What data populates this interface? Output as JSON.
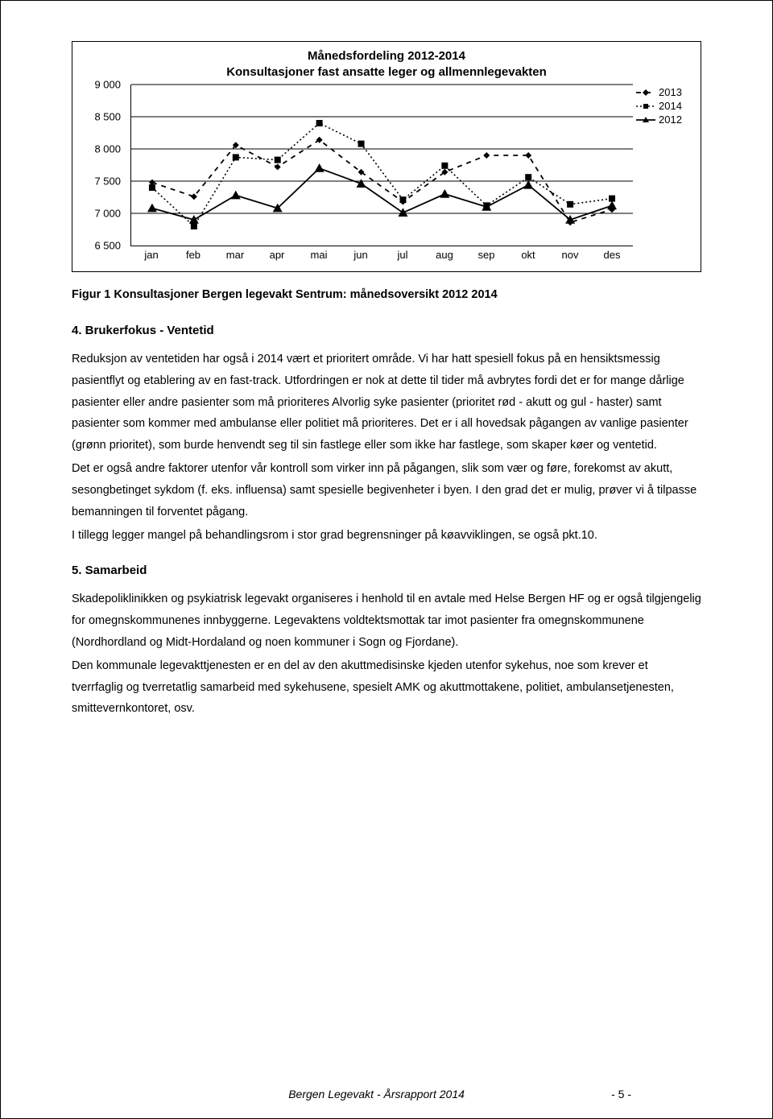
{
  "chart": {
    "type": "line",
    "title_line1": "Månedsfordeling 2012-2014",
    "title_line2": "Konsultasjoner fast ansatte leger og allmennlegevakten",
    "title_fontsize": 15,
    "x_categories": [
      "jan",
      "feb",
      "mar",
      "apr",
      "mai",
      "jun",
      "jul",
      "aug",
      "sep",
      "okt",
      "nov",
      "des"
    ],
    "y_ticks": [
      6500,
      7000,
      7500,
      8000,
      8500,
      9000
    ],
    "y_tick_labels": [
      "6 500",
      "7 000",
      "7 500",
      "8 000",
      "8 500",
      "9 000"
    ],
    "ylim": [
      6500,
      9000
    ],
    "series": [
      {
        "name": "2013",
        "legend_label": "2013",
        "color": "#000000",
        "stroke_width": 1.8,
        "dash": "6,6",
        "marker": "diamond",
        "marker_size": 8,
        "marker_fill": "#000000",
        "values": [
          7480,
          7260,
          8060,
          7720,
          8140,
          7640,
          7180,
          7640,
          7900,
          7900,
          6860,
          7060
        ]
      },
      {
        "name": "2014",
        "legend_label": "2014",
        "color": "#000000",
        "stroke_width": 1.6,
        "dash": "2,3",
        "marker": "square",
        "marker_size": 8,
        "marker_fill": "#000000",
        "values": [
          7400,
          6800,
          7870,
          7830,
          8400,
          8080,
          7210,
          7740,
          7120,
          7560,
          7140,
          7230
        ]
      },
      {
        "name": "2012",
        "legend_label": "2012",
        "color": "#000000",
        "stroke_width": 1.8,
        "dash": "none",
        "marker": "triangle",
        "marker_size": 9,
        "marker_fill": "#000000",
        "values": [
          7080,
          6900,
          7280,
          7080,
          7700,
          7460,
          7010,
          7300,
          7100,
          7440,
          6900,
          7120
        ]
      }
    ],
    "legend_order": [
      "2013",
      "2014",
      "2012"
    ],
    "background_color": "#ffffff",
    "grid_color": "#000000",
    "label_fontsize": 13
  },
  "figure_caption": "Figur 1 Konsultasjoner Bergen legevakt Sentrum: månedsoversikt 2012 2014",
  "section4": {
    "heading": "4. Brukerfokus - Ventetid",
    "p1": "Reduksjon av ventetiden har også i 2014 vært et prioritert område. Vi har hatt spesiell fokus på en hensiktsmessig pasientflyt og etablering av en fast-track. Utfordringen er nok at dette til tider må avbrytes fordi det er for mange dårlige pasienter eller andre pasienter som må prioriteres Alvorlig syke pasienter (prioritet rød - akutt og gul - haster) samt pasienter som kommer med ambulanse eller politiet må prioriteres. Det er i all hovedsak pågangen av vanlige pasienter (grønn prioritet), som burde henvendt seg til sin fastlege eller som ikke har fastlege, som skaper køer og ventetid.",
    "p2": "Det er også andre faktorer utenfor vår kontroll som virker inn på pågangen, slik som vær og føre, forekomst av akutt, sesongbetinget sykdom (f. eks. influensa) samt spesielle begivenheter i byen. I den grad det er mulig, prøver vi å tilpasse bemanningen til forventet pågang.",
    "p3": "I tillegg legger mangel på behandlingsrom i stor grad begrensninger på køavviklingen, se også pkt.10."
  },
  "section5": {
    "heading": "5. Samarbeid",
    "p1": "Skadepoliklinikken og psykiatrisk legevakt organiseres i henhold til en avtale med Helse Bergen HF og er også tilgjengelig for omegnskommunenes innbyggerne. Legevaktens voldtektsmottak tar imot pasienter fra omegnskommunene (Nordhordland og Midt-Hordaland og noen kommuner i Sogn og Fjordane).",
    "p2": "Den kommunale legevakttjenesten er en del av den akuttmedisinske kjeden utenfor sykehus, noe som krever et tverrfaglig og tverretatlig samarbeid med sykehusene, spesielt AMK og akuttmottakene, politiet, ambulansetjenesten, smittevernkontoret, osv."
  },
  "footer": {
    "center": "Bergen Legevakt - Årsrapport 2014",
    "page": "- 5 -"
  }
}
